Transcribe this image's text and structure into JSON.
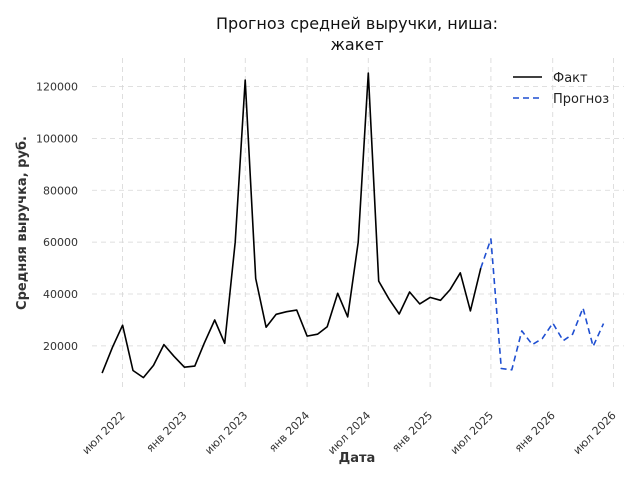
{
  "chart_data": {
    "type": "line",
    "title_lines": [
      "Прогноз средней выручки, ниша:",
      "жакет"
    ],
    "xlabel": "Дата",
    "ylabel": "Средняя выручка, руб.",
    "ylim": [
      3000,
      131000
    ],
    "xlim": [
      "2022-04-01",
      "2026-08-01"
    ],
    "yticks": [
      20000,
      40000,
      60000,
      80000,
      100000,
      120000
    ],
    "xticks": [
      {
        "date": "2022-07-01",
        "label": "июл 2022"
      },
      {
        "date": "2023-01-01",
        "label": "янв 2023"
      },
      {
        "date": "2023-07-01",
        "label": "июл 2023"
      },
      {
        "date": "2024-01-01",
        "label": "янв 2024"
      },
      {
        "date": "2024-07-01",
        "label": "июл 2024"
      },
      {
        "date": "2025-01-01",
        "label": "янв 2025"
      },
      {
        "date": "2025-07-01",
        "label": "июл 2025"
      },
      {
        "date": "2026-01-01",
        "label": "янв 2026"
      },
      {
        "date": "2026-07-01",
        "label": "июл 2026"
      }
    ],
    "grid": true,
    "legend_position": "top-right",
    "series": [
      {
        "name": "Факт",
        "color": "#000000",
        "style": "solid",
        "points": [
          {
            "x": "2022-05-01",
            "y": 9500
          },
          {
            "x": "2022-06-01",
            "y": 19500
          },
          {
            "x": "2022-07-01",
            "y": 28000
          },
          {
            "x": "2022-08-01",
            "y": 10500
          },
          {
            "x": "2022-09-01",
            "y": 7800
          },
          {
            "x": "2022-10-01",
            "y": 12500
          },
          {
            "x": "2022-11-01",
            "y": 20500
          },
          {
            "x": "2022-12-01",
            "y": 16000
          },
          {
            "x": "2023-01-01",
            "y": 11800
          },
          {
            "x": "2023-02-01",
            "y": 12200
          },
          {
            "x": "2023-03-01",
            "y": 21000
          },
          {
            "x": "2023-04-01",
            "y": 30000
          },
          {
            "x": "2023-05-01",
            "y": 21000
          },
          {
            "x": "2023-06-01",
            "y": 60000
          },
          {
            "x": "2023-07-01",
            "y": 122500
          },
          {
            "x": "2023-08-01",
            "y": 46000
          },
          {
            "x": "2023-09-01",
            "y": 27200
          },
          {
            "x": "2023-10-01",
            "y": 32200
          },
          {
            "x": "2023-11-01",
            "y": 33200
          },
          {
            "x": "2023-12-01",
            "y": 33800
          },
          {
            "x": "2024-01-01",
            "y": 23800
          },
          {
            "x": "2024-02-01",
            "y": 24500
          },
          {
            "x": "2024-03-01",
            "y": 27400
          },
          {
            "x": "2024-04-01",
            "y": 40300
          },
          {
            "x": "2024-05-01",
            "y": 31200
          },
          {
            "x": "2024-06-01",
            "y": 60000
          },
          {
            "x": "2024-07-01",
            "y": 125200
          },
          {
            "x": "2024-08-01",
            "y": 45000
          },
          {
            "x": "2024-09-01",
            "y": 38000
          },
          {
            "x": "2024-10-01",
            "y": 32300
          },
          {
            "x": "2024-11-01",
            "y": 40800
          },
          {
            "x": "2024-12-01",
            "y": 36200
          },
          {
            "x": "2025-01-01",
            "y": 38700
          },
          {
            "x": "2025-02-01",
            "y": 37600
          },
          {
            "x": "2025-03-01",
            "y": 41600
          },
          {
            "x": "2025-04-01",
            "y": 48200
          },
          {
            "x": "2025-05-01",
            "y": 33500
          },
          {
            "x": "2025-06-01",
            "y": 50000
          }
        ]
      },
      {
        "name": "Прогноз",
        "color": "#1f4fd1",
        "style": "dashed",
        "points": [
          {
            "x": "2025-06-01",
            "y": 50000
          },
          {
            "x": "2025-07-01",
            "y": 61200
          },
          {
            "x": "2025-08-01",
            "y": 11300
          },
          {
            "x": "2025-09-01",
            "y": 10800
          },
          {
            "x": "2025-10-01",
            "y": 25800
          },
          {
            "x": "2025-11-01",
            "y": 20500
          },
          {
            "x": "2025-12-01",
            "y": 22800
          },
          {
            "x": "2026-01-01",
            "y": 28800
          },
          {
            "x": "2026-02-01",
            "y": 22000
          },
          {
            "x": "2026-03-01",
            "y": 24500
          },
          {
            "x": "2026-04-01",
            "y": 34600
          },
          {
            "x": "2026-05-01",
            "y": 19800
          },
          {
            "x": "2026-06-01",
            "y": 28600
          }
        ]
      }
    ]
  }
}
